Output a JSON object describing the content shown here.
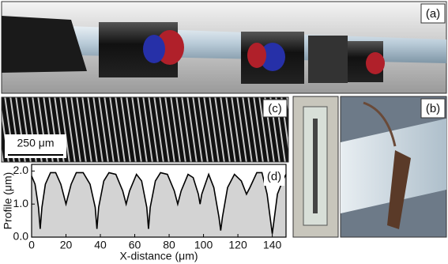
{
  "panels": {
    "a": "(a)",
    "b": "(b)",
    "c": "(c)",
    "d": "(d)"
  },
  "scale_bar": "250 μm",
  "chart_data": {
    "type": "line",
    "xlabel": "X-distance (μm)",
    "ylabel": "Profile (μm)",
    "x": [
      0,
      2,
      4,
      5,
      6,
      8,
      11,
      14,
      17,
      20,
      23,
      26,
      30,
      34,
      37,
      38,
      39,
      42,
      45,
      49,
      53,
      55,
      57,
      61,
      64,
      67,
      68,
      69,
      72,
      75,
      79,
      83,
      85,
      87,
      91,
      94,
      97,
      98,
      99,
      103,
      106,
      109,
      110,
      111,
      114,
      118,
      122,
      125,
      127,
      131,
      134,
      137,
      139,
      140,
      141,
      143,
      146,
      148
    ],
    "values": [
      1.85,
      1.6,
      0.9,
      0.25,
      0.9,
      1.6,
      1.95,
      1.95,
      1.6,
      1.0,
      1.6,
      1.95,
      1.95,
      1.6,
      0.9,
      0.25,
      0.9,
      1.7,
      1.95,
      1.9,
      1.4,
      1.0,
      1.4,
      1.9,
      1.7,
      0.9,
      0.25,
      0.9,
      1.7,
      1.95,
      1.9,
      1.4,
      1.0,
      1.4,
      1.9,
      1.8,
      1.3,
      1.0,
      1.3,
      1.9,
      1.5,
      0.6,
      0.2,
      0.6,
      1.5,
      1.9,
      1.7,
      1.3,
      1.5,
      1.95,
      1.95,
      1.3,
      0.5,
      0.1,
      0.5,
      1.3,
      1.7,
      1.9
    ],
    "color": "#000000",
    "fill": "#d3d3d3",
    "xlim": [
      0,
      148
    ],
    "ylim": [
      0,
      2.2
    ],
    "xticks": [
      0,
      20,
      40,
      60,
      80,
      100,
      120,
      140
    ],
    "yticks": [
      {
        "value": 0,
        "label": "0.0"
      },
      {
        "value": 1,
        "label": "1.0"
      },
      {
        "value": 2,
        "label": "2.0"
      }
    ]
  }
}
